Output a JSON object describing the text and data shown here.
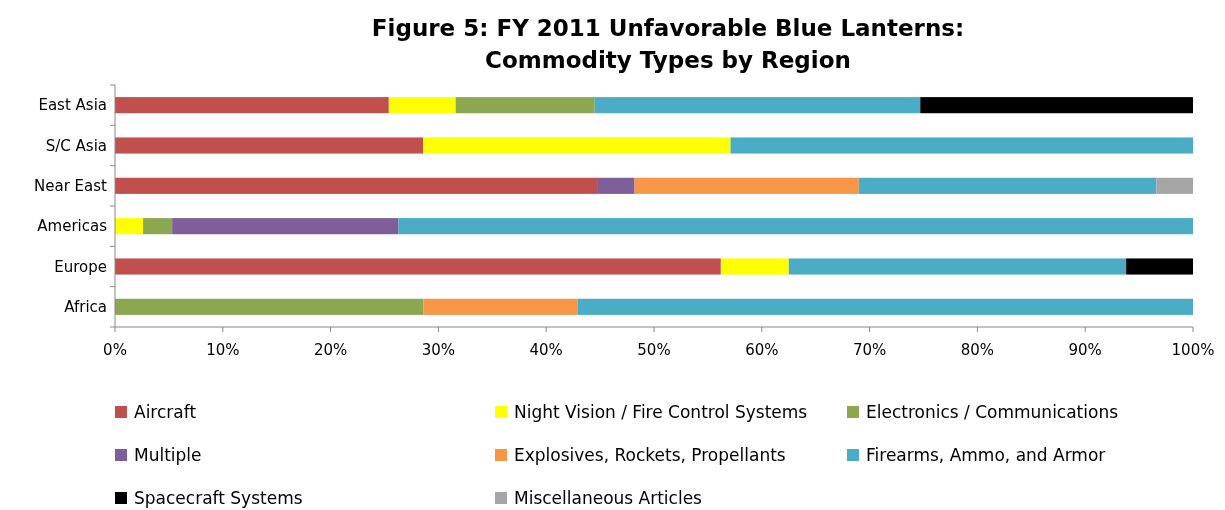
{
  "chart_data": {
    "type": "bar",
    "orientation": "horizontal",
    "stacked": true,
    "title": "Figure 5: FY 2011 Unfavorable Blue Lanterns:\nCommodity Types by Region",
    "categories": [
      "East Asia",
      "S/C Asia",
      "Near East",
      "Americas",
      "Europe",
      "Africa"
    ],
    "series": [
      {
        "name": "Aircraft",
        "color": "#c0504d",
        "values": [
          25.4,
          28.6,
          44.8,
          0,
          56.2,
          0
        ]
      },
      {
        "name": "Night Vision / Fire Control Systems",
        "color": "#ffff00",
        "values": [
          6.2,
          28.5,
          0,
          2.6,
          6.3,
          0
        ]
      },
      {
        "name": "Electronics / Communications",
        "color": "#8ba74f",
        "values": [
          12.9,
          0,
          0,
          2.7,
          0,
          28.6
        ]
      },
      {
        "name": "Multiple",
        "color": "#7f5f9a",
        "values": [
          0,
          0,
          3.4,
          21.0,
          0,
          0
        ]
      },
      {
        "name": "Explosives, Rockets, Propellants",
        "color": "#f79646",
        "values": [
          0,
          0,
          20.8,
          0,
          0,
          14.3
        ]
      },
      {
        "name": "Firearms, Ammo, and Armor",
        "color": "#4bacc6",
        "values": [
          30.2,
          42.9,
          27.6,
          73.7,
          31.3,
          57.1
        ]
      },
      {
        "name": "Spacecraft Systems",
        "color": "#000000",
        "values": [
          25.3,
          0,
          0,
          0,
          6.2,
          0
        ]
      },
      {
        "name": "Miscellaneous Articles",
        "color": "#a5a5a5",
        "values": [
          0,
          0,
          3.4,
          0,
          0,
          0
        ]
      }
    ],
    "xlim": [
      0,
      100
    ],
    "xticks": [
      {
        "value": 0,
        "label": "0%"
      },
      {
        "value": 10,
        "label": "10%"
      },
      {
        "value": 20,
        "label": "20%"
      },
      {
        "value": 30,
        "label": "30%"
      },
      {
        "value": 40,
        "label": "40%"
      },
      {
        "value": 50,
        "label": "50%"
      },
      {
        "value": 60,
        "label": "60%"
      },
      {
        "value": 70,
        "label": "70%"
      },
      {
        "value": 80,
        "label": "80%"
      },
      {
        "value": 90,
        "label": "90%"
      },
      {
        "value": 100,
        "label": "100%"
      }
    ],
    "grid": false,
    "legend": "bottom"
  }
}
